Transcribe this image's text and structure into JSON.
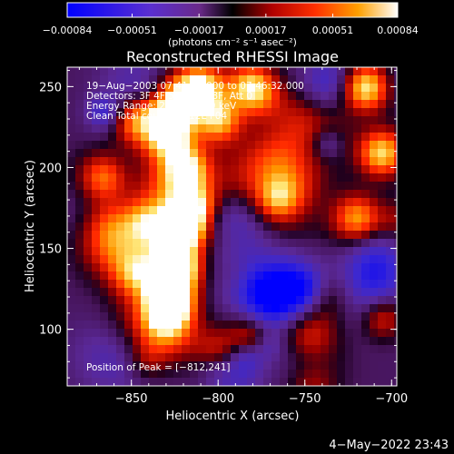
{
  "chart_data": {
    "type": "heatmap",
    "title": "Reconstructed RHESSI Image",
    "xlabel": "Heliocentric X (arcsec)",
    "ylabel": "Heliocentric Y (arcsec)",
    "xlim": [
      -887,
      -697
    ],
    "ylim": [
      65,
      262
    ],
    "x_ticks": [
      -850,
      -800,
      -750,
      -700
    ],
    "y_ticks": [
      100,
      150,
      200,
      250
    ],
    "x_tick_labels": [
      "−850",
      "−800",
      "−750",
      "−700"
    ],
    "y_tick_labels": [
      "100",
      "150",
      "200",
      "250"
    ],
    "colorbar": {
      "range": [
        -0.00084,
        0.00084
      ],
      "ticks": [
        -0.00084,
        -0.00051,
        -0.00017,
        0.00017,
        0.00051,
        0.00084
      ],
      "tick_labels": [
        "−0.00084",
        "−0.00051",
        "−0.00017",
        "0.00017",
        "0.00051",
        "0.00084"
      ],
      "unit_label": "(photons cm⁻² s⁻¹ asec⁻²)"
    },
    "annotations": [
      "19−Aug−2003 07:41:40.000 to 07:46:32.000",
      "Detectors: 3F 4F 5F 6F 7F 8F, Att 0",
      "Energy Range: 25.0 − 50.0 keV",
      "Clean     Total counts: 2.12E+04"
    ],
    "peak_label": "Position of Peak = [−812,241]",
    "peak": {
      "x": -812,
      "y": 241
    }
  },
  "footer": {
    "timestamp": "4−May−2022 23:43"
  }
}
